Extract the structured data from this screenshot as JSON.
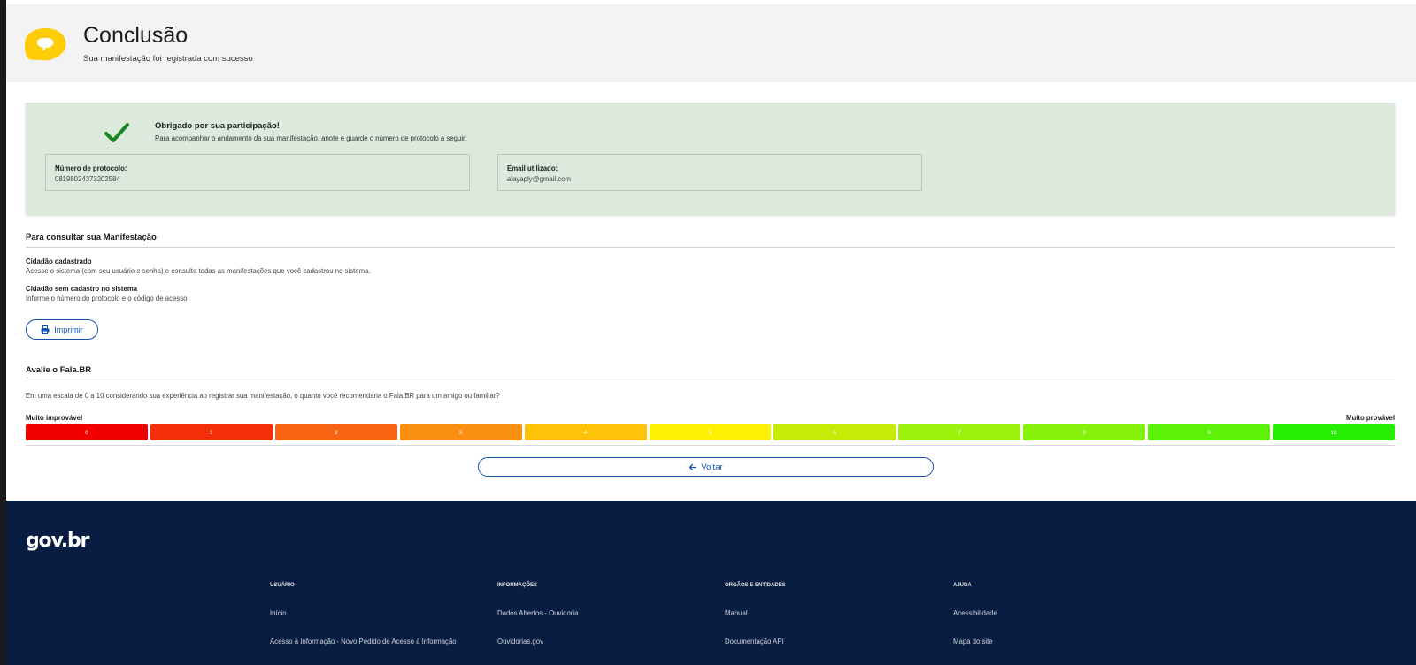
{
  "header": {
    "title": "Conclusão",
    "subtitle": "Sua manifestação foi registrada com sucesso"
  },
  "success": {
    "title": "Obrigado por sua participação!",
    "text": "Para acompanhar o andamento da sua manifestação, anote e guarde o número de protocolo a seguir:",
    "protocol_label": "Número de protocolo:",
    "protocol_value": "08198024373202584",
    "email_label": "Email utilizado:",
    "email_value": "alayaply@gmail.com"
  },
  "consult": {
    "title": "Para consultar sua Manifestação",
    "registered_title": "Cidadão cadastrado",
    "registered_text": "Acesse o sistema (com seu usuário e senha) e consulte todas as manifestações que você cadastrou no sistema.",
    "unregistered_title": "Cidadão sem cadastro no sistema",
    "unregistered_text": "Informe o número do protocolo e o código de acesso",
    "print_label": "Imprimir"
  },
  "rating": {
    "title": "Avalie o Fala.BR",
    "question": "Em uma escala de 0 a 10 considerando sua experiência ao registrar sua manifestação, o quanto você recomendaria o Fala.BR para um amigo ou familiar?",
    "min_label": "Muito improvável",
    "max_label": "Muito provável",
    "scale": [
      {
        "label": "0",
        "color": "#f20000"
      },
      {
        "label": "1",
        "color": "#f52e0a"
      },
      {
        "label": "2",
        "color": "#f86213"
      },
      {
        "label": "3",
        "color": "#fa8f12"
      },
      {
        "label": "4",
        "color": "#fcc309"
      },
      {
        "label": "5",
        "color": "#fdf000"
      },
      {
        "label": "6",
        "color": "#c5eb07"
      },
      {
        "label": "7",
        "color": "#9df00b"
      },
      {
        "label": "8",
        "color": "#86f20c"
      },
      {
        "label": "9",
        "color": "#5df10a"
      },
      {
        "label": "10",
        "color": "#26ee03"
      }
    ]
  },
  "back_label": "Voltar",
  "footer": {
    "logo": "gov.br",
    "columns": [
      {
        "heading": "USUÁRIO",
        "links": [
          "Início",
          "Acesso à Informação - Novo Pedido de Acesso à Informação"
        ]
      },
      {
        "heading": "INFORMAÇÕES",
        "links": [
          "Dados Abertos - Ouvidoria",
          "Ouvidorias.gov"
        ]
      },
      {
        "heading": "ÓRGÃOS E ENTIDADES",
        "links": [
          "Manual",
          "Documentação API"
        ]
      },
      {
        "heading": "AJUDA",
        "links": [
          "Acessibilidade",
          "Mapa do site"
        ]
      }
    ]
  },
  "colors": {
    "primary_blue": "#1351b4",
    "footer_bg": "#071d41",
    "success_bg": "#dbeadc",
    "check_green": "#168821",
    "logo_yellow": "#ffcd07"
  }
}
